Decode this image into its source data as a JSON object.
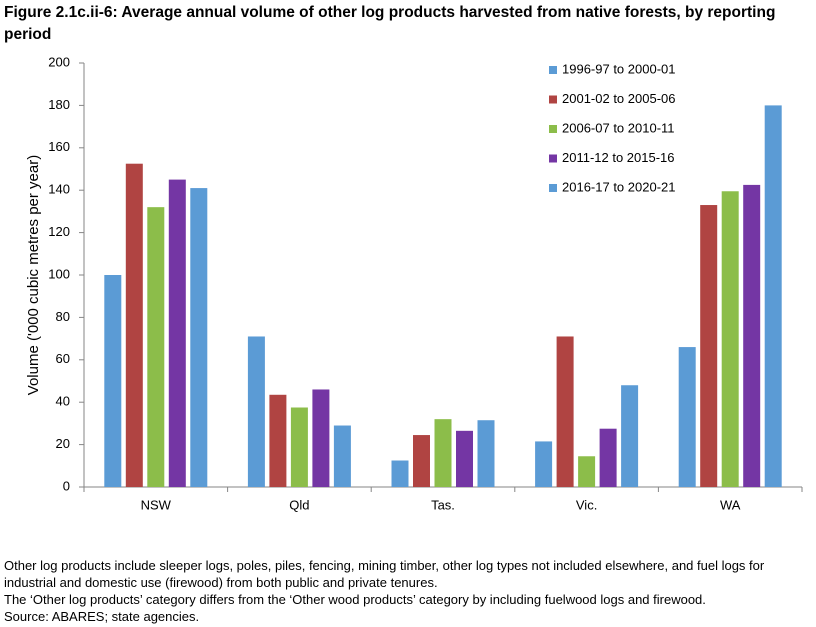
{
  "chart_data": {
    "type": "bar",
    "title": "Figure 2.1c.ii-6: Average annual volume of other log products harvested from native forests, by reporting period",
    "y_label": "Volume ('000 cubic metres per year)",
    "categories": [
      "NSW",
      "Qld",
      "Tas.",
      "Vic.",
      "WA"
    ],
    "series": [
      {
        "name": "1996-97 to 2000-01",
        "color": "#5b9bd5",
        "values": [
          100,
          71,
          12.5,
          21.5,
          66
        ]
      },
      {
        "name": "2001-02 to 2005-06",
        "color": "#b04442",
        "values": [
          152.5,
          43.5,
          24.5,
          71,
          133
        ]
      },
      {
        "name": "2006-07 to 2010-11",
        "color": "#8cbd4a",
        "values": [
          132,
          37.5,
          32,
          14.5,
          139.5
        ]
      },
      {
        "name": "2011-12 to 2015-16",
        "color": "#7436a4",
        "values": [
          145,
          46,
          26.5,
          27.5,
          142.5
        ]
      },
      {
        "name": "2016-17 to 2020-21",
        "color": "#5b9bd5",
        "values": [
          141,
          29,
          31.5,
          48,
          180
        ]
      }
    ],
    "ylim": [
      0,
      200
    ],
    "yticks": [
      0,
      20,
      40,
      60,
      80,
      100,
      120,
      140,
      160,
      180,
      200
    ],
    "grid": false,
    "legend": "top-right",
    "notes": [
      "Other log products include sleeper logs, poles, piles, fencing, mining timber, other log types not included elsewhere, and fuel logs for industrial and domestic use (firewood) from both public and private tenures.",
      "The ‘Other log products’ category differs from the ‘Other wood products’ category by including fuelwood logs and firewood.",
      "Source: ABARES; state agencies."
    ]
  }
}
